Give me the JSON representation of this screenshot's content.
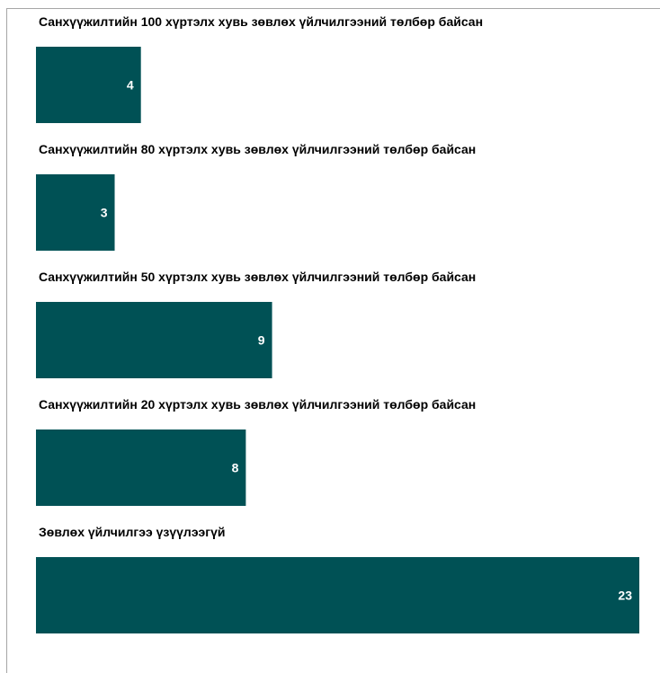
{
  "chart_data": {
    "type": "bar",
    "orientation": "horizontal",
    "categories": [
      "Санхүүжилтийн 100 хүртэлх хувь зөвлөх үйлчилгээний төлбөр байсан",
      "Санхүүжилтийн 80 хүртэлх хувь зөвлөх үйлчилгээний төлбөр байсан",
      "Санхүүжилтийн 50 хүртэлх хувь зөвлөх үйлчилгээний төлбөр байсан",
      "Санхүүжилтийн 20 хүртэлх хувь зөвлөх үйлчилгээний төлбөр байсан",
      "Зөвлөх үйлчилгээ үзүүлээгүй"
    ],
    "values": [
      4,
      3,
      9,
      8,
      23
    ],
    "data_labels": [
      "4",
      "3",
      "9",
      "8",
      "23"
    ],
    "bar_color": "#005155",
    "label_color": "#ffffff",
    "title": "",
    "xlabel": "",
    "ylabel": "",
    "xlim": [
      0,
      23
    ],
    "grid": false,
    "legend": "none"
  }
}
